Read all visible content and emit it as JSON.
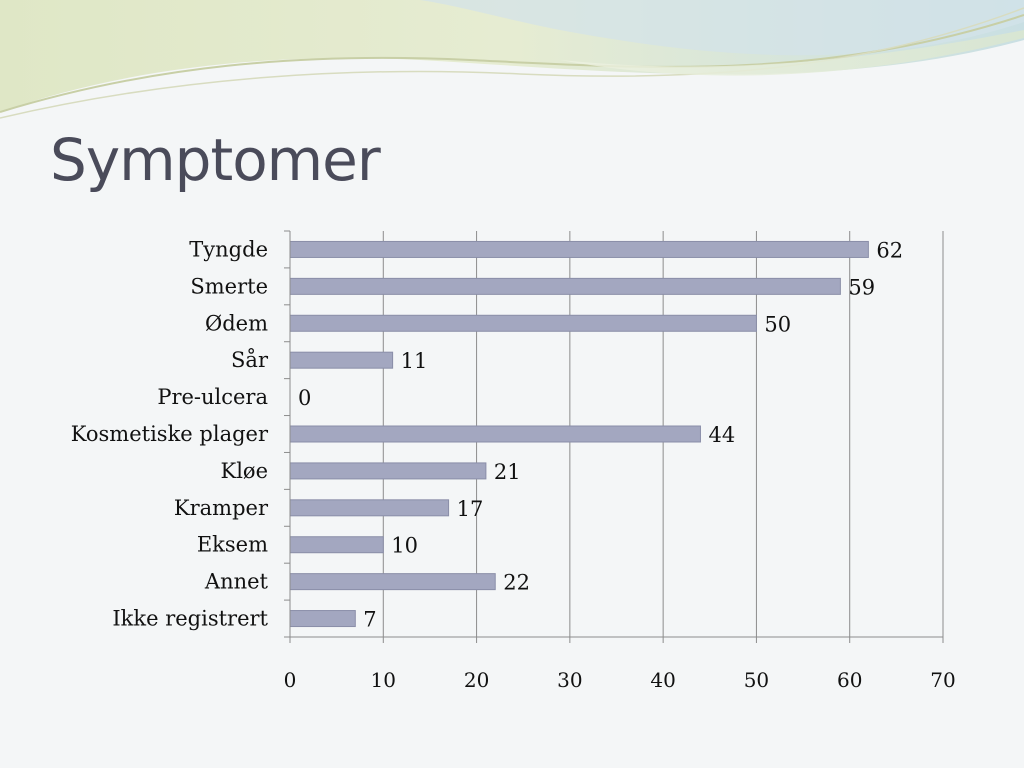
{
  "slide": {
    "title": "Symptomer"
  },
  "chart_data": {
    "type": "bar",
    "orientation": "horizontal",
    "categories": [
      "Tyngde",
      "Smerte",
      "Ødem",
      "Sår",
      "Pre-ulcera",
      "Kosmetiske plager",
      "Kløe",
      "Kramper",
      "Eksem",
      "Annet",
      "Ikke registrert"
    ],
    "values": [
      62,
      59,
      50,
      11,
      0,
      44,
      21,
      17,
      10,
      22,
      7
    ],
    "xlim": [
      0,
      70
    ],
    "xticks": [
      0,
      10,
      20,
      30,
      40,
      50,
      60,
      70
    ],
    "grid": "vertical",
    "legend": "none",
    "data_labels": true,
    "bar_color": "#a3a7c0",
    "bar_stroke": "#8a8ea8"
  }
}
